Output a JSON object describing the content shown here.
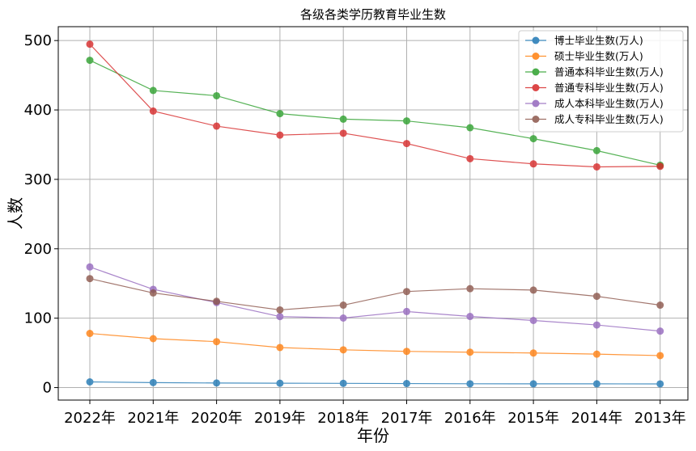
{
  "chart_data": {
    "type": "line",
    "title": "各级各类学历教育毕业生数",
    "xlabel": "年份",
    "ylabel": "人数",
    "categories": [
      "2022年",
      "2021年",
      "2020年",
      "2019年",
      "2018年",
      "2017年",
      "2016年",
      "2015年",
      "2014年",
      "2013年"
    ],
    "ylim": [
      -18,
      520
    ],
    "yticks": [
      0,
      100,
      200,
      300,
      400,
      500
    ],
    "grid": true,
    "legend_position": "top-right",
    "series": [
      {
        "name": "博士毕业生数(万人)",
        "color": "#1f77b4",
        "values": [
          8.2,
          7.2,
          6.6,
          6.3,
          6.1,
          5.8,
          5.5,
          5.4,
          5.4,
          5.3
        ]
      },
      {
        "name": "硕士毕业生数(万人)",
        "color": "#ff7f0e",
        "values": [
          78,
          70.5,
          66.2,
          57.7,
          54.4,
          52.2,
          51.0,
          49.8,
          48.2,
          46.1
        ]
      },
      {
        "name": "普通本科毕业生数(万人)",
        "color": "#2ca02c",
        "values": [
          471.6,
          428.1,
          420.5,
          394.7,
          386.8,
          384.2,
          374.4,
          358.6,
          341.4,
          320.4
        ]
      },
      {
        "name": "普通专科毕业生数(万人)",
        "color": "#d62728",
        "values": [
          494.8,
          398.4,
          376.7,
          363.8,
          366.5,
          351.6,
          329.8,
          322.3,
          318.0,
          318.8
        ]
      },
      {
        "name": "成人本科毕业生数(万人)",
        "color": "#9467bd",
        "values": [
          173.8,
          141.6,
          122.5,
          102.3,
          100.2,
          109.6,
          102.5,
          96.7,
          90.2,
          81.4
        ]
      },
      {
        "name": "成人专科毕业生数(万人)",
        "color": "#8c564b",
        "values": [
          157.0,
          136.4,
          124.3,
          111.9,
          118.8,
          138.4,
          142.5,
          140.5,
          131.5,
          118.8
        ]
      }
    ]
  }
}
